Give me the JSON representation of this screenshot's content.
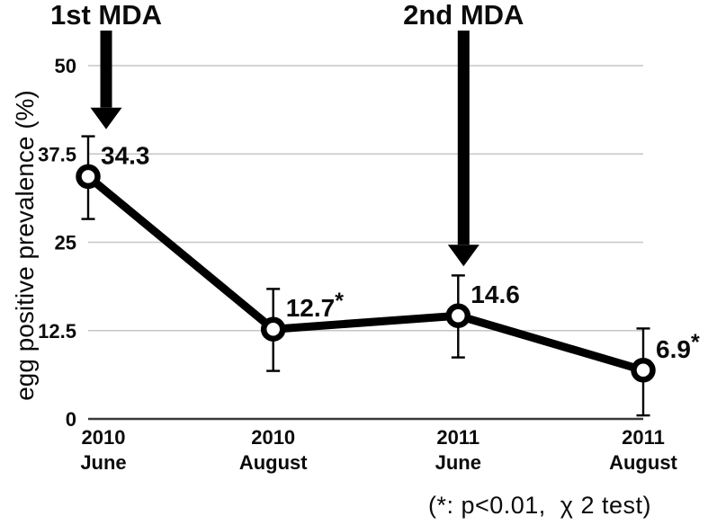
{
  "figure": {
    "background": "#ffffff"
  },
  "chart_data": {
    "type": "line",
    "title": "",
    "ylabel": "egg positive prevalence (%)",
    "xlabel": "",
    "categories": [
      {
        "year": "2010",
        "month": "June"
      },
      {
        "year": "2010",
        "month": "August"
      },
      {
        "year": "2011",
        "month": "June"
      },
      {
        "year": "2011",
        "month": "August"
      }
    ],
    "series": [
      {
        "name": "egg positive prevalence",
        "values": [
          34.3,
          12.7,
          14.6,
          6.9
        ],
        "labels": [
          "34.3",
          "12.7",
          "14.6",
          "6.9"
        ],
        "significant": [
          false,
          true,
          false,
          true
        ],
        "error_low": [
          28.3,
          6.8,
          8.7,
          0.5
        ],
        "error_high": [
          40.0,
          18.4,
          20.3,
          12.8
        ]
      }
    ],
    "yticks": [
      {
        "value": 0,
        "label": "0"
      },
      {
        "value": 12.5,
        "label": "12.5"
      },
      {
        "value": 25,
        "label": "25"
      },
      {
        "value": 37.5,
        "label": "37.5"
      },
      {
        "value": 50,
        "label": "50"
      }
    ],
    "ylim": [
      0,
      50
    ],
    "grid": true,
    "legend_position": "none",
    "colors": {
      "line": "#000000",
      "marker_fill": "#ffffff",
      "grid": "#c6c6c6",
      "axis": "#3a3a3a",
      "text": "#0b0b0b"
    },
    "annotations": [
      {
        "label": "1st MDA",
        "at_point": 0,
        "arrow_tip_value": 41.0
      },
      {
        "label": "2nd MDA",
        "at_point": 2,
        "arrow_tip_value": 21.6
      }
    ],
    "footnote": "(*: p<0.01,  χ 2 test)"
  }
}
